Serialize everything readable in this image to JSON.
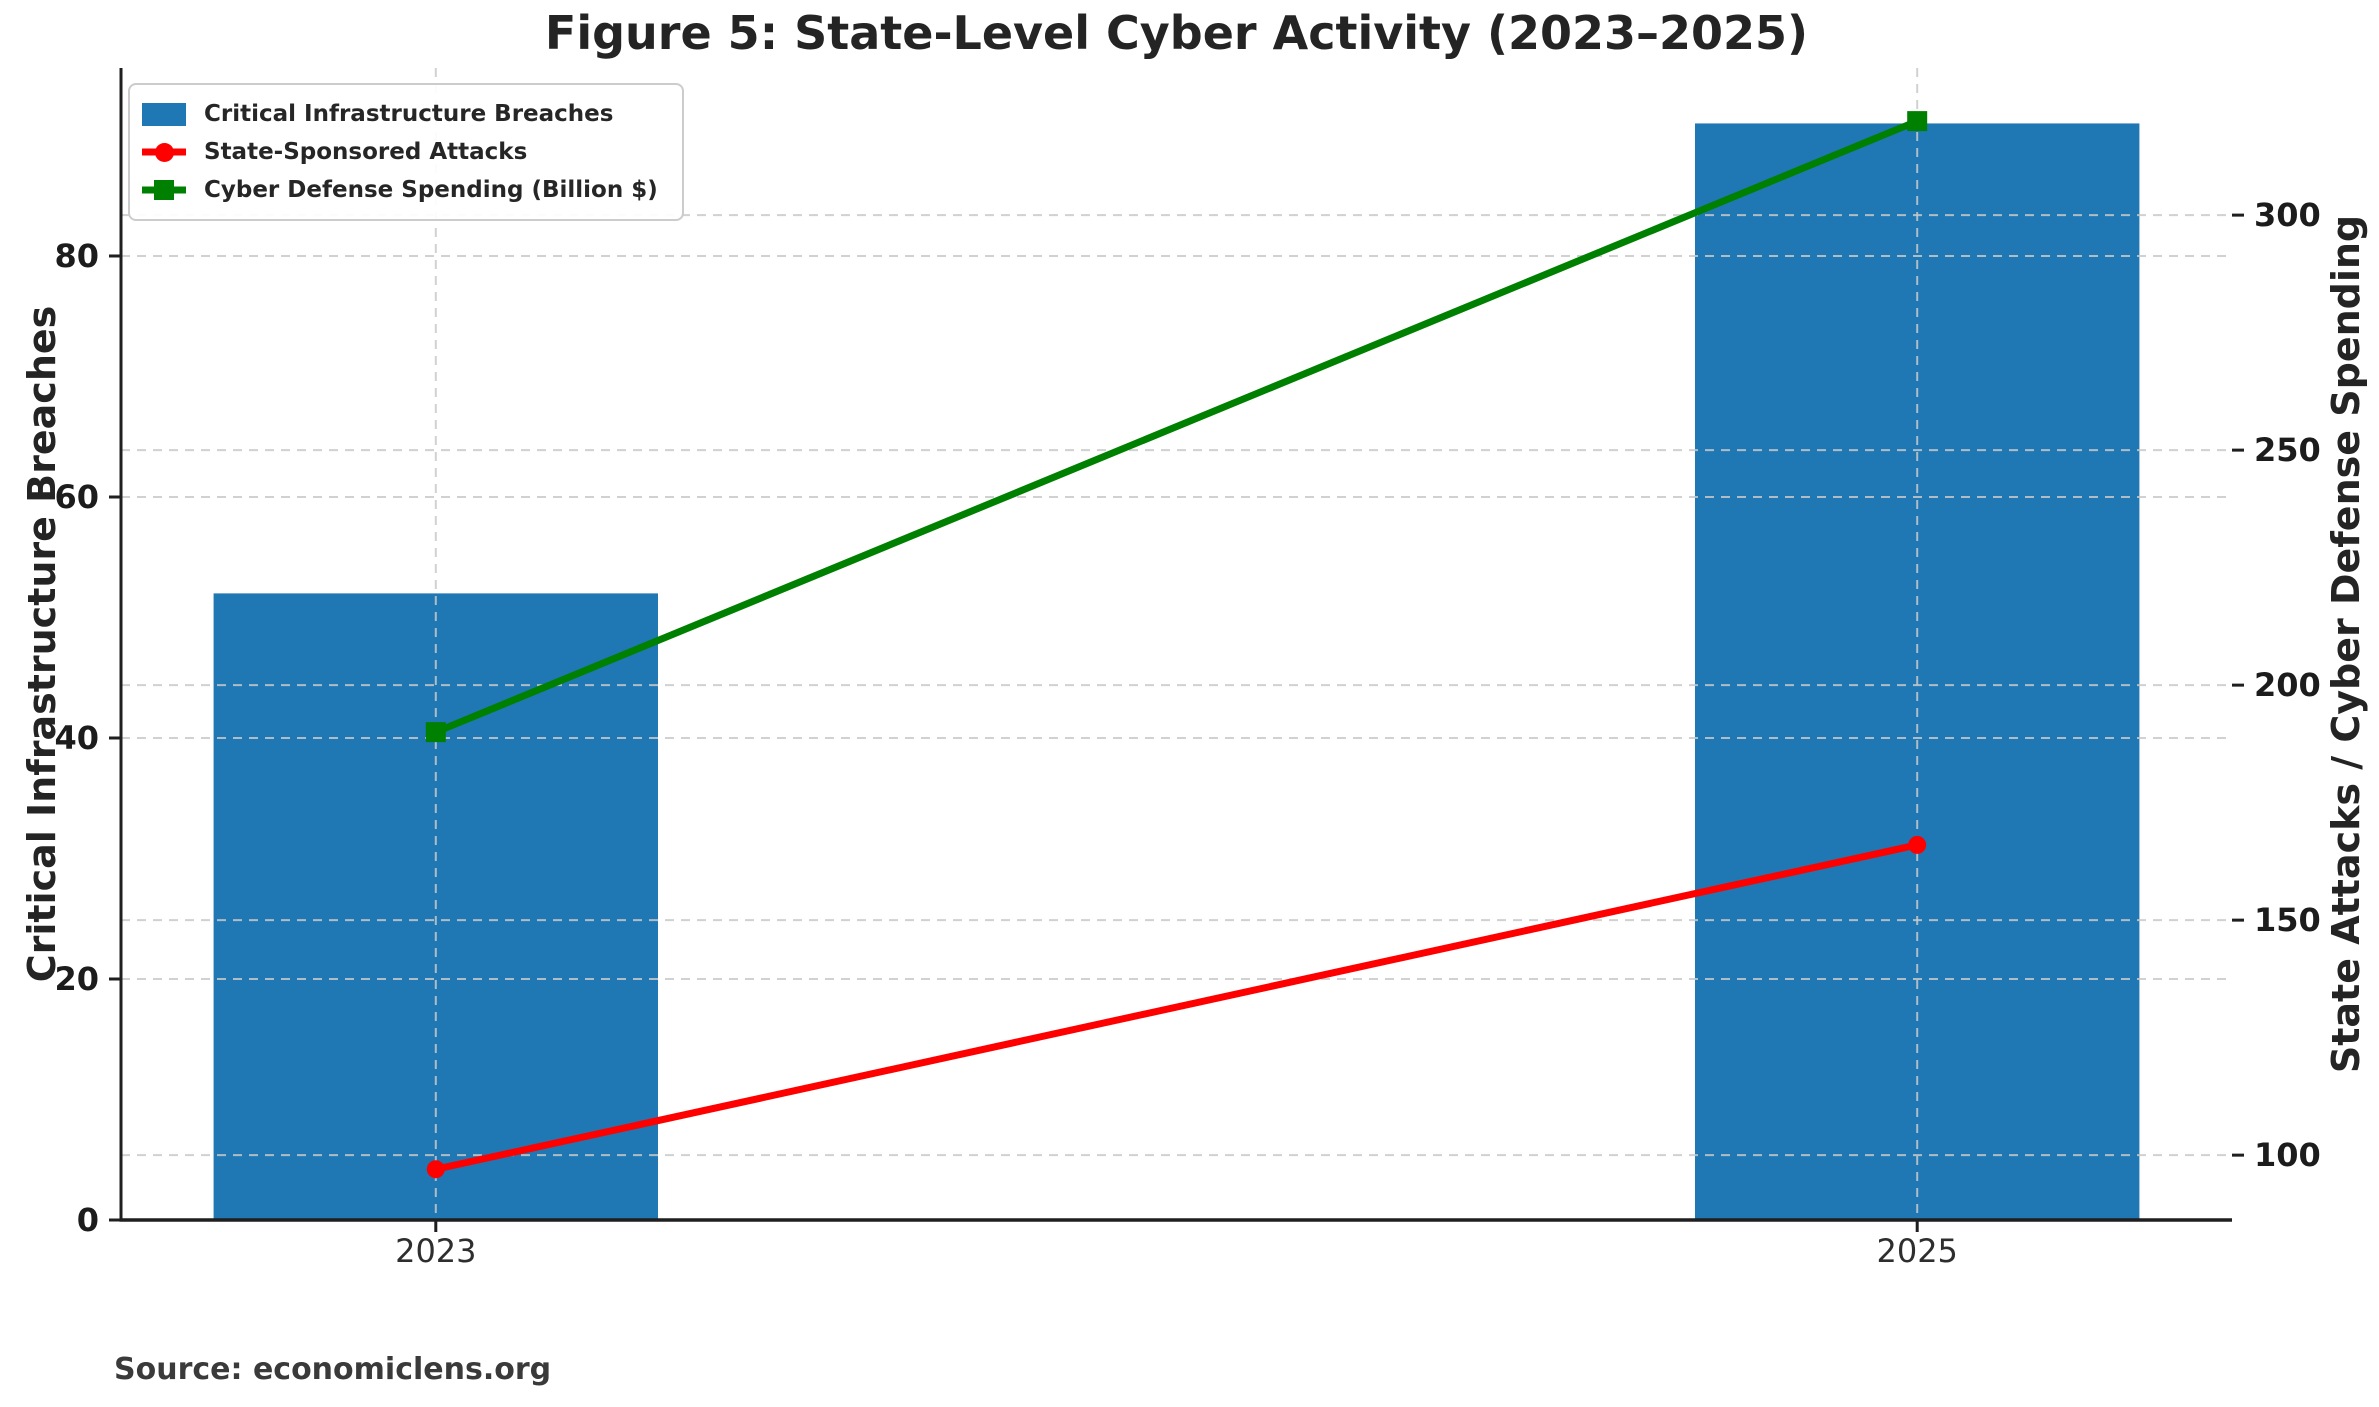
{
  "chart_data": {
    "type": "combo-bar-line",
    "title": "Figure 5: State-Level Cyber Activity (2023–2025)",
    "source": "Source: economiclens.org",
    "x": [
      2023,
      2025
    ],
    "x_tick_labels": [
      "2023",
      "2025"
    ],
    "xlim": [
      2022.575,
      2025.425
    ],
    "series": [
      {
        "name": "Critical Infrastructure Breaches",
        "type": "bar",
        "axis": "left",
        "color": "#1f77b4",
        "bar_width_x": 0.6,
        "values": [
          52,
          91
        ]
      },
      {
        "name": "State-Sponsored Attacks",
        "type": "line",
        "axis": "right",
        "color": "#ff0000",
        "marker": "circle",
        "values": [
          97,
          166
        ]
      },
      {
        "name": "Cyber Defense Spending (Billion $)",
        "type": "line",
        "axis": "right",
        "color": "#008000",
        "marker": "square",
        "values": [
          190,
          320
        ]
      }
    ],
    "left_axis": {
      "label": "Critical Infrastructure Breaches",
      "ticks": [
        0,
        20,
        40,
        60,
        80
      ],
      "lim": [
        0,
        95.6
      ]
    },
    "right_axis": {
      "label": "State Attacks / Cyber Defense Spending",
      "ticks": [
        100,
        150,
        200,
        250,
        300
      ],
      "lim": [
        86.2,
        331.3
      ]
    },
    "grid": {
      "shown": true,
      "line_style": "dashed",
      "color": "#c9c9c9"
    },
    "legend": {
      "position": "upper-left"
    }
  }
}
